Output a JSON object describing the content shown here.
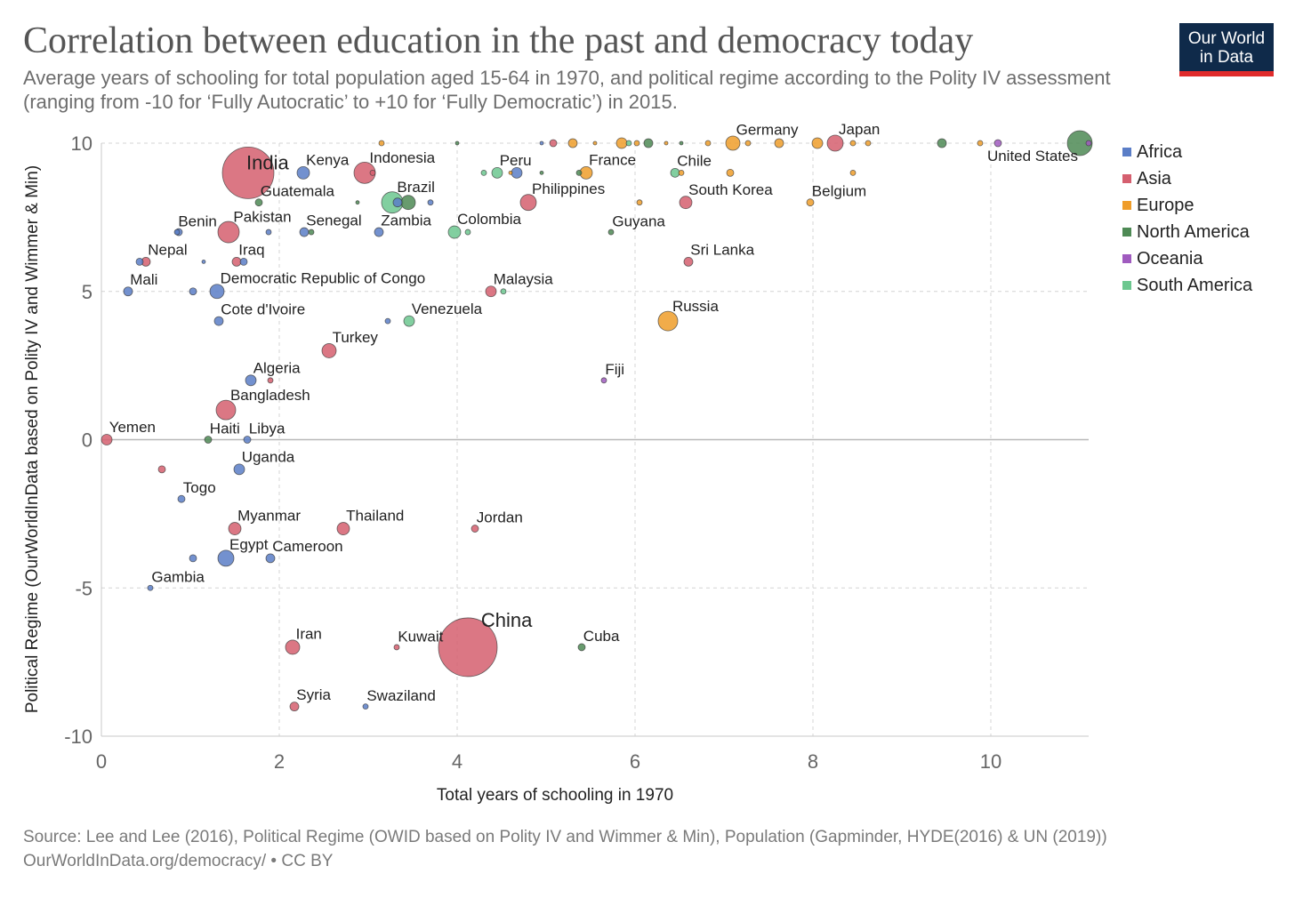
{
  "header": {
    "title": "Correlation between education in the past and democracy today",
    "subtitle": "Average years of schooling for total population aged 15-64 in 1970, and political regime according to the Polity IV assessment (ranging from -10 for ‘Fully Autocratic’ to +10 for ‘Fully Democratic’) in 2015.",
    "logo_line1": "Our World",
    "logo_line2": "in Data"
  },
  "footer": {
    "source": "Source: Lee and Lee (2016), Political Regime (OWID based on Polity IV and Wimmer & Min), Population (Gapminder, HYDE(2016) & UN (2019))",
    "url": "OurWorldInData.org/democracy/ • CC BY"
  },
  "chart_data": {
    "type": "scatter",
    "title": "Correlation between education in the past and democracy today",
    "xlabel": "Total years of schooling in 1970",
    "ylabel": "Political Regime (OurWorldInData based on Polity IV and Wimmer & Min)",
    "xlim": [
      0,
      11.1
    ],
    "ylim": [
      -10,
      10
    ],
    "x_ticks": [
      0,
      2,
      4,
      6,
      8,
      10
    ],
    "y_ticks": [
      -10,
      -5,
      0,
      5,
      10
    ],
    "grid": true,
    "legend_position": "right",
    "colors": {
      "Africa": "#5b7ec7",
      "Asia": "#d55f6f",
      "Europe": "#ef9d2a",
      "North America": "#4e8a55",
      "Oceania": "#a05bbf",
      "South America": "#6cc78f"
    },
    "legend": [
      "Africa",
      "Asia",
      "Europe",
      "North America",
      "Oceania",
      "South America"
    ],
    "points": [
      {
        "name": "India",
        "x": 1.65,
        "y": 9,
        "r": 29,
        "region": "Asia"
      },
      {
        "name": "Kenya",
        "x": 2.27,
        "y": 9,
        "r": 7,
        "region": "Africa"
      },
      {
        "name": "Indonesia",
        "x": 2.96,
        "y": 9,
        "r": 12,
        "region": "Asia"
      },
      {
        "name": "Peru",
        "x": 4.45,
        "y": 9,
        "r": 6,
        "region": "South America"
      },
      {
        "name": "France",
        "x": 5.45,
        "y": 9,
        "r": 7,
        "region": "Europe"
      },
      {
        "name": "Chile",
        "x": 6.45,
        "y": 9,
        "r": 5,
        "region": "South America"
      },
      {
        "name": "Germany",
        "x": 7.1,
        "y": 10,
        "r": 8,
        "region": "Europe"
      },
      {
        "name": "Japan",
        "x": 8.25,
        "y": 10,
        "r": 9,
        "region": "Asia"
      },
      {
        "name": "United States",
        "x": 11.0,
        "y": 10,
        "r": 14,
        "region": "North America"
      },
      {
        "name": "Guatemala",
        "x": 1.77,
        "y": 8,
        "r": 4,
        "region": "North America"
      },
      {
        "name": "Brazil",
        "x": 3.27,
        "y": 8,
        "r": 12,
        "region": "South America"
      },
      {
        "name": "Philippines",
        "x": 4.8,
        "y": 8,
        "r": 9,
        "region": "Asia"
      },
      {
        "name": "South Korea",
        "x": 6.57,
        "y": 8,
        "r": 7,
        "region": "Asia"
      },
      {
        "name": "Belgium",
        "x": 7.97,
        "y": 8,
        "r": 4,
        "region": "Europe"
      },
      {
        "name": "Benin",
        "x": 0.85,
        "y": 7,
        "r": 3,
        "region": "Africa"
      },
      {
        "name": "Pakistan",
        "x": 1.43,
        "y": 7,
        "r": 12,
        "region": "Asia"
      },
      {
        "name": "Senegal",
        "x": 2.28,
        "y": 7,
        "r": 5,
        "region": "Africa"
      },
      {
        "name": "Zambia",
        "x": 3.12,
        "y": 7,
        "r": 5,
        "region": "Africa"
      },
      {
        "name": "Colombia",
        "x": 3.97,
        "y": 7,
        "r": 7,
        "region": "South America"
      },
      {
        "name": "Guyana",
        "x": 5.73,
        "y": 7,
        "r": 3,
        "region": "North America"
      },
      {
        "name": "Nepal",
        "x": 0.5,
        "y": 6,
        "r": 5,
        "region": "Asia"
      },
      {
        "name": "Iraq",
        "x": 1.52,
        "y": 6,
        "r": 5,
        "region": "Asia"
      },
      {
        "name": "Sri Lanka",
        "x": 6.6,
        "y": 6,
        "r": 5,
        "region": "Asia"
      },
      {
        "name": "Mali",
        "x": 0.3,
        "y": 5,
        "r": 5,
        "region": "Africa"
      },
      {
        "name": "Democratic Republic of Congo",
        "x": 1.3,
        "y": 5,
        "r": 8,
        "region": "Africa"
      },
      {
        "name": "Malaysia",
        "x": 4.38,
        "y": 5,
        "r": 6,
        "region": "Asia"
      },
      {
        "name": "Cote d'Ivoire",
        "x": 1.32,
        "y": 4,
        "r": 5,
        "region": "Africa"
      },
      {
        "name": "Venezuela",
        "x": 3.46,
        "y": 4,
        "r": 6,
        "region": "South America"
      },
      {
        "name": "Russia",
        "x": 6.37,
        "y": 4,
        "r": 11,
        "region": "Europe"
      },
      {
        "name": "Turkey",
        "x": 2.56,
        "y": 3,
        "r": 8,
        "region": "Asia"
      },
      {
        "name": "Algeria",
        "x": 1.68,
        "y": 2,
        "r": 6,
        "region": "Africa"
      },
      {
        "name": "Fiji",
        "x": 5.65,
        "y": 2,
        "r": 3,
        "region": "Oceania"
      },
      {
        "name": "Bangladesh",
        "x": 1.4,
        "y": 1,
        "r": 11,
        "region": "Asia"
      },
      {
        "name": "Yemen",
        "x": 0.06,
        "y": 0,
        "r": 6,
        "region": "Asia"
      },
      {
        "name": "Haiti",
        "x": 1.2,
        "y": 0,
        "r": 4,
        "region": "North America"
      },
      {
        "name": "Libya",
        "x": 1.64,
        "y": 0,
        "r": 4,
        "region": "Africa"
      },
      {
        "name": "Uganda",
        "x": 1.55,
        "y": -1,
        "r": 6,
        "region": "Africa"
      },
      {
        "name": "Togo",
        "x": 0.9,
        "y": -2,
        "r": 4,
        "region": "Africa"
      },
      {
        "name": "Myanmar",
        "x": 1.5,
        "y": -3,
        "r": 7,
        "region": "Asia"
      },
      {
        "name": "Thailand",
        "x": 2.72,
        "y": -3,
        "r": 7,
        "region": "Asia"
      },
      {
        "name": "Jordan",
        "x": 4.2,
        "y": -3,
        "r": 4,
        "region": "Asia"
      },
      {
        "name": "Egypt",
        "x": 1.4,
        "y": -4,
        "r": 9,
        "region": "Africa"
      },
      {
        "name": "Cameroon",
        "x": 1.9,
        "y": -4,
        "r": 5,
        "region": "Africa"
      },
      {
        "name": "Gambia",
        "x": 0.55,
        "y": -5,
        "r": 3,
        "region": "Africa"
      },
      {
        "name": "Iran",
        "x": 2.15,
        "y": -7,
        "r": 8,
        "region": "Asia"
      },
      {
        "name": "Kuwait",
        "x": 3.32,
        "y": -7,
        "r": 3,
        "region": "Asia"
      },
      {
        "name": "China",
        "x": 4.12,
        "y": -7,
        "r": 33,
        "region": "Asia"
      },
      {
        "name": "Cuba",
        "x": 5.4,
        "y": -7,
        "r": 4,
        "region": "North America"
      },
      {
        "name": "Syria",
        "x": 2.17,
        "y": -9,
        "r": 5,
        "region": "Asia"
      },
      {
        "name": "Swaziland",
        "x": 2.97,
        "y": -9,
        "r": 3,
        "region": "Africa"
      },
      {
        "name": "",
        "x": 3.15,
        "y": 10,
        "r": 3,
        "region": "Europe"
      },
      {
        "name": "",
        "x": 4.0,
        "y": 10,
        "r": 2,
        "region": "North America"
      },
      {
        "name": "",
        "x": 4.95,
        "y": 10,
        "r": 2,
        "region": "Africa"
      },
      {
        "name": "",
        "x": 5.08,
        "y": 10,
        "r": 4,
        "region": "Asia"
      },
      {
        "name": "",
        "x": 5.3,
        "y": 10,
        "r": 5,
        "region": "Europe"
      },
      {
        "name": "",
        "x": 5.55,
        "y": 10,
        "r": 2,
        "region": "Europe"
      },
      {
        "name": "",
        "x": 5.85,
        "y": 10,
        "r": 6,
        "region": "Europe"
      },
      {
        "name": "",
        "x": 5.93,
        "y": 10,
        "r": 3,
        "region": "South America"
      },
      {
        "name": "",
        "x": 6.02,
        "y": 10,
        "r": 3,
        "region": "Europe"
      },
      {
        "name": "",
        "x": 6.15,
        "y": 10,
        "r": 5,
        "region": "North America"
      },
      {
        "name": "",
        "x": 6.35,
        "y": 10,
        "r": 2,
        "region": "Europe"
      },
      {
        "name": "",
        "x": 6.52,
        "y": 10,
        "r": 2,
        "region": "North America"
      },
      {
        "name": "",
        "x": 6.82,
        "y": 10,
        "r": 3,
        "region": "Europe"
      },
      {
        "name": "",
        "x": 7.27,
        "y": 10,
        "r": 3,
        "region": "Europe"
      },
      {
        "name": "",
        "x": 7.62,
        "y": 10,
        "r": 5,
        "region": "Europe"
      },
      {
        "name": "",
        "x": 8.05,
        "y": 10,
        "r": 6,
        "region": "Europe"
      },
      {
        "name": "",
        "x": 8.45,
        "y": 10,
        "r": 3,
        "region": "Europe"
      },
      {
        "name": "",
        "x": 8.62,
        "y": 10,
        "r": 3,
        "region": "Europe"
      },
      {
        "name": "",
        "x": 9.45,
        "y": 10,
        "r": 5,
        "region": "North America"
      },
      {
        "name": "",
        "x": 9.88,
        "y": 10,
        "r": 3,
        "region": "Europe"
      },
      {
        "name": "",
        "x": 10.08,
        "y": 10,
        "r": 4,
        "region": "Oceania"
      },
      {
        "name": "",
        "x": 11.1,
        "y": 10,
        "r": 3,
        "region": "Oceania"
      },
      {
        "name": "",
        "x": 3.05,
        "y": 9,
        "r": 3,
        "region": "Asia"
      },
      {
        "name": "",
        "x": 4.3,
        "y": 9,
        "r": 3,
        "region": "South America"
      },
      {
        "name": "",
        "x": 4.6,
        "y": 9,
        "r": 2,
        "region": "Europe"
      },
      {
        "name": "",
        "x": 4.67,
        "y": 9,
        "r": 6,
        "region": "Africa"
      },
      {
        "name": "",
        "x": 4.95,
        "y": 9,
        "r": 2,
        "region": "North America"
      },
      {
        "name": "",
        "x": 5.37,
        "y": 9,
        "r": 3,
        "region": "North America"
      },
      {
        "name": "",
        "x": 6.52,
        "y": 9,
        "r": 3,
        "region": "Europe"
      },
      {
        "name": "",
        "x": 7.07,
        "y": 9,
        "r": 4,
        "region": "Europe"
      },
      {
        "name": "",
        "x": 8.45,
        "y": 9,
        "r": 3,
        "region": "Europe"
      },
      {
        "name": "",
        "x": 2.88,
        "y": 8,
        "r": 2,
        "region": "North America"
      },
      {
        "name": "",
        "x": 3.33,
        "y": 8,
        "r": 5,
        "region": "Africa"
      },
      {
        "name": "",
        "x": 3.45,
        "y": 8,
        "r": 8,
        "region": "North America"
      },
      {
        "name": "",
        "x": 3.7,
        "y": 8,
        "r": 3,
        "region": "Africa"
      },
      {
        "name": "",
        "x": 6.05,
        "y": 8,
        "r": 3,
        "region": "Europe"
      },
      {
        "name": "",
        "x": 0.87,
        "y": 7,
        "r": 4,
        "region": "Africa"
      },
      {
        "name": "",
        "x": 1.88,
        "y": 7,
        "r": 3,
        "region": "Africa"
      },
      {
        "name": "",
        "x": 2.36,
        "y": 7,
        "r": 3,
        "region": "North America"
      },
      {
        "name": "",
        "x": 4.12,
        "y": 7,
        "r": 3,
        "region": "South America"
      },
      {
        "name": "",
        "x": 0.43,
        "y": 6,
        "r": 4,
        "region": "Africa"
      },
      {
        "name": "",
        "x": 1.15,
        "y": 6,
        "r": 2,
        "region": "Africa"
      },
      {
        "name": "",
        "x": 1.6,
        "y": 6,
        "r": 4,
        "region": "Africa"
      },
      {
        "name": "",
        "x": 1.03,
        "y": 5,
        "r": 4,
        "region": "Africa"
      },
      {
        "name": "",
        "x": 4.52,
        "y": 5,
        "r": 3,
        "region": "South America"
      },
      {
        "name": "",
        "x": 3.22,
        "y": 4,
        "r": 3,
        "region": "Africa"
      },
      {
        "name": "",
        "x": 1.9,
        "y": 2,
        "r": 3,
        "region": "Asia"
      },
      {
        "name": "",
        "x": 0.68,
        "y": -1,
        "r": 4,
        "region": "Asia"
      },
      {
        "name": "",
        "x": 1.03,
        "y": -4,
        "r": 4,
        "region": "Africa"
      }
    ]
  }
}
